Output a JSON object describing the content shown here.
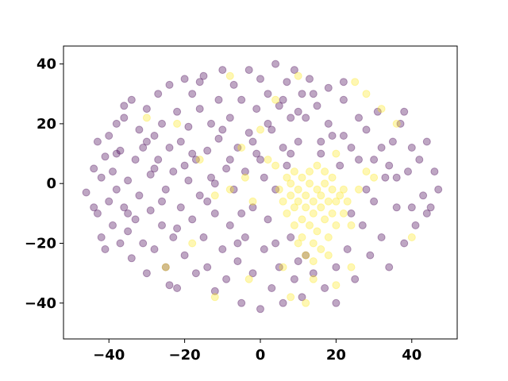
{
  "chart_data": {
    "type": "scatter",
    "title": "",
    "xlabel": "",
    "ylabel": "",
    "xlim": [
      -52,
      52
    ],
    "ylim": [
      -52,
      46
    ],
    "x_ticks": [
      -40,
      -20,
      0,
      20,
      40
    ],
    "y_ticks": [
      -40,
      -20,
      0,
      20,
      40
    ],
    "x_tick_labels": [
      "−40",
      "−20",
      "0",
      "20",
      "40"
    ],
    "y_tick_labels": [
      "−40",
      "−20",
      "0",
      "20",
      "40"
    ],
    "grid": false,
    "legend": "none",
    "marker_alpha": 0.35,
    "series": [
      {
        "color": "#440154",
        "points": [
          [
            -46,
            -3
          ],
          [
            -44,
            5
          ],
          [
            -43,
            -10
          ],
          [
            -43,
            14
          ],
          [
            -42,
            -18
          ],
          [
            -42,
            2
          ],
          [
            -41,
            -22
          ],
          [
            -41,
            9
          ],
          [
            -40,
            -6
          ],
          [
            -40,
            16
          ],
          [
            -39,
            -14
          ],
          [
            -39,
            4
          ],
          [
            -38,
            20
          ],
          [
            -38,
            -2
          ],
          [
            -37,
            -20
          ],
          [
            -37,
            11
          ],
          [
            -36,
            -8
          ],
          [
            -36,
            22
          ],
          [
            -35,
            -16
          ],
          [
            -35,
            1
          ],
          [
            -34,
            28
          ],
          [
            -34,
            -25
          ],
          [
            -33,
            8
          ],
          [
            -33,
            -12
          ],
          [
            -32,
            18
          ],
          [
            -32,
            -4
          ],
          [
            -31,
            -20
          ],
          [
            -31,
            12
          ],
          [
            -30,
            25
          ],
          [
            -30,
            -30
          ],
          [
            -29,
            3
          ],
          [
            -29,
            -9
          ],
          [
            -28,
            16
          ],
          [
            -28,
            -22
          ],
          [
            -27,
            8
          ],
          [
            -27,
            30
          ],
          [
            -26,
            -14
          ],
          [
            -26,
            20
          ],
          [
            -25,
            -2
          ],
          [
            -25,
            -28
          ],
          [
            -24,
            12
          ],
          [
            -24,
            33
          ],
          [
            -23,
            -18
          ],
          [
            -23,
            4
          ],
          [
            -22,
            24
          ],
          [
            -22,
            -35
          ],
          [
            -21,
            -8
          ],
          [
            -21,
            14
          ],
          [
            -20,
            35
          ],
          [
            -20,
            -24
          ],
          [
            -19,
            1
          ],
          [
            -19,
            19
          ],
          [
            -18,
            -12
          ],
          [
            -18,
            30
          ],
          [
            -17,
            -30
          ],
          [
            -17,
            8
          ],
          [
            -16,
            25
          ],
          [
            -16,
            -4
          ],
          [
            -15,
            -18
          ],
          [
            -15,
            36
          ],
          [
            -14,
            11
          ],
          [
            -14,
            -28
          ],
          [
            -13,
            2
          ],
          [
            -13,
            20
          ],
          [
            -12,
            -36
          ],
          [
            -12,
            -10
          ],
          [
            -11,
            28
          ],
          [
            -11,
            15
          ],
          [
            -10,
            -22
          ],
          [
            -10,
            38
          ],
          [
            -9,
            5
          ],
          [
            -9,
            -32
          ],
          [
            -8,
            22
          ],
          [
            -8,
            -14
          ],
          [
            -7,
            33
          ],
          [
            -7,
            -2
          ],
          [
            -6,
            -26
          ],
          [
            -6,
            12
          ],
          [
            -5,
            -40
          ],
          [
            -5,
            28
          ],
          [
            -4,
            4
          ],
          [
            -4,
            -18
          ],
          [
            -3,
            38
          ],
          [
            -3,
            17
          ],
          [
            -2,
            -30
          ],
          [
            -2,
            -8
          ],
          [
            -1,
            25
          ],
          [
            -1,
            10
          ],
          [
            0,
            -42
          ],
          [
            0,
            35
          ],
          [
            1,
            -22
          ],
          [
            1,
            2
          ],
          [
            2,
            30
          ],
          [
            2,
            -12
          ],
          [
            3,
            18
          ],
          [
            3,
            -35
          ],
          [
            4,
            40
          ],
          [
            4,
            -2
          ],
          [
            5,
            26
          ],
          [
            5,
            -28
          ],
          [
            6,
            12
          ],
          [
            6,
            -40
          ],
          [
            7,
            34
          ],
          [
            7,
            6
          ],
          [
            8,
            -18
          ],
          [
            8,
            22
          ],
          [
            9,
            -32
          ],
          [
            9,
            38
          ],
          [
            10,
            14
          ],
          [
            10,
            -26
          ],
          [
            11,
            30
          ],
          [
            11,
            -38
          ],
          [
            12,
            22
          ],
          [
            13,
            35
          ],
          [
            14,
            -30
          ],
          [
            15,
            26
          ],
          [
            16,
            10
          ],
          [
            17,
            -35
          ],
          [
            18,
            32
          ],
          [
            19,
            16
          ],
          [
            20,
            -28
          ],
          [
            21,
            6
          ],
          [
            22,
            28
          ],
          [
            23,
            -22
          ],
          [
            24,
            12
          ],
          [
            25,
            -32
          ],
          [
            26,
            22
          ],
          [
            27,
            -14
          ],
          [
            28,
            18
          ],
          [
            29,
            -24
          ],
          [
            30,
            8
          ],
          [
            31,
            24
          ],
          [
            32,
            -18
          ],
          [
            33,
            2
          ],
          [
            34,
            -28
          ],
          [
            35,
            14
          ],
          [
            36,
            -8
          ],
          [
            37,
            20
          ],
          [
            38,
            -20
          ],
          [
            39,
            4
          ],
          [
            40,
            12
          ],
          [
            41,
            -14
          ],
          [
            42,
            8
          ],
          [
            43,
            -4
          ],
          [
            44,
            14
          ],
          [
            45,
            -8
          ],
          [
            46,
            4
          ],
          [
            47,
            -2
          ],
          [
            -35,
            -10
          ],
          [
            -28,
            5
          ],
          [
            -22,
            -15
          ],
          [
            -18,
            10
          ],
          [
            -12,
            0
          ],
          [
            -8,
            8
          ],
          [
            -5,
            -10
          ],
          [
            -2,
            14
          ],
          [
            2,
            20
          ],
          [
            6,
            28
          ],
          [
            10,
            24
          ],
          [
            14,
            30
          ],
          [
            18,
            20
          ],
          [
            22,
            16
          ],
          [
            26,
            8
          ],
          [
            30,
            -6
          ],
          [
            34,
            6
          ],
          [
            -38,
            10
          ],
          [
            -26,
            -6
          ],
          [
            -14,
            -6
          ],
          [
            -6,
            -20
          ],
          [
            4,
            -20
          ],
          [
            12,
            -24
          ],
          [
            24,
            -10
          ],
          [
            32,
            12
          ],
          [
            40,
            -8
          ],
          [
            -30,
            14
          ],
          [
            -20,
            6
          ],
          [
            -10,
            18
          ],
          [
            0,
            8
          ],
          [
            8,
            10
          ],
          [
            16,
            14
          ],
          [
            28,
            -2
          ],
          [
            36,
            2
          ],
          [
            -44,
            -8
          ],
          [
            -16,
            34
          ],
          [
            22,
            34
          ],
          [
            44,
            -10
          ],
          [
            -24,
            -34
          ],
          [
            20,
            -40
          ],
          [
            -36,
            26
          ],
          [
            38,
            24
          ]
        ]
      },
      {
        "color": "#fde725",
        "points": [
          [
            5,
            -2
          ],
          [
            6,
            -6
          ],
          [
            7,
            -10
          ],
          [
            8,
            -4
          ],
          [
            8,
            0
          ],
          [
            9,
            -8
          ],
          [
            9,
            -14
          ],
          [
            10,
            -2
          ],
          [
            10,
            -6
          ],
          [
            11,
            -12
          ],
          [
            11,
            -18
          ],
          [
            12,
            -4
          ],
          [
            12,
            -8
          ],
          [
            13,
            -14
          ],
          [
            13,
            0
          ],
          [
            14,
            -6
          ],
          [
            14,
            -10
          ],
          [
            14,
            -20
          ],
          [
            15,
            -2
          ],
          [
            15,
            -16
          ],
          [
            16,
            -8
          ],
          [
            16,
            -4
          ],
          [
            17,
            -12
          ],
          [
            17,
            0
          ],
          [
            18,
            -6
          ],
          [
            18,
            -18
          ],
          [
            19,
            -10
          ],
          [
            19,
            -2
          ],
          [
            20,
            -14
          ],
          [
            20,
            -6
          ],
          [
            21,
            -4
          ],
          [
            22,
            -10
          ],
          [
            11,
            2
          ],
          [
            13,
            4
          ],
          [
            15,
            6
          ],
          [
            17,
            4
          ],
          [
            19,
            2
          ],
          [
            7,
            2
          ],
          [
            9,
            4
          ],
          [
            4,
            6
          ],
          [
            22,
            -2
          ],
          [
            23,
            -6
          ],
          [
            12,
            -24
          ],
          [
            14,
            -26
          ],
          [
            16,
            -22
          ],
          [
            10,
            -20
          ],
          [
            18,
            -24
          ],
          [
            24,
            -14
          ],
          [
            2,
            8
          ],
          [
            28,
            4
          ],
          [
            30,
            2
          ],
          [
            26,
            -2
          ],
          [
            -2,
            -6
          ],
          [
            -4,
            2
          ],
          [
            -8,
            -2
          ],
          [
            -12,
            -4
          ],
          [
            -25,
            -28
          ],
          [
            -12,
            -38
          ],
          [
            -3,
            -32
          ],
          [
            8,
            -38
          ],
          [
            12,
            -40
          ],
          [
            20,
            -34
          ],
          [
            25,
            34
          ],
          [
            32,
            25
          ],
          [
            36,
            20
          ],
          [
            -5,
            12
          ],
          [
            0,
            18
          ],
          [
            4,
            28
          ],
          [
            -8,
            36
          ],
          [
            10,
            36
          ],
          [
            28,
            30
          ],
          [
            -30,
            22
          ],
          [
            14,
            -32
          ],
          [
            24,
            -28
          ],
          [
            6,
            -28
          ],
          [
            -16,
            8
          ],
          [
            -22,
            20
          ],
          [
            40,
            -18
          ],
          [
            20,
            10
          ],
          [
            -18,
            -20
          ]
        ]
      }
    ]
  }
}
